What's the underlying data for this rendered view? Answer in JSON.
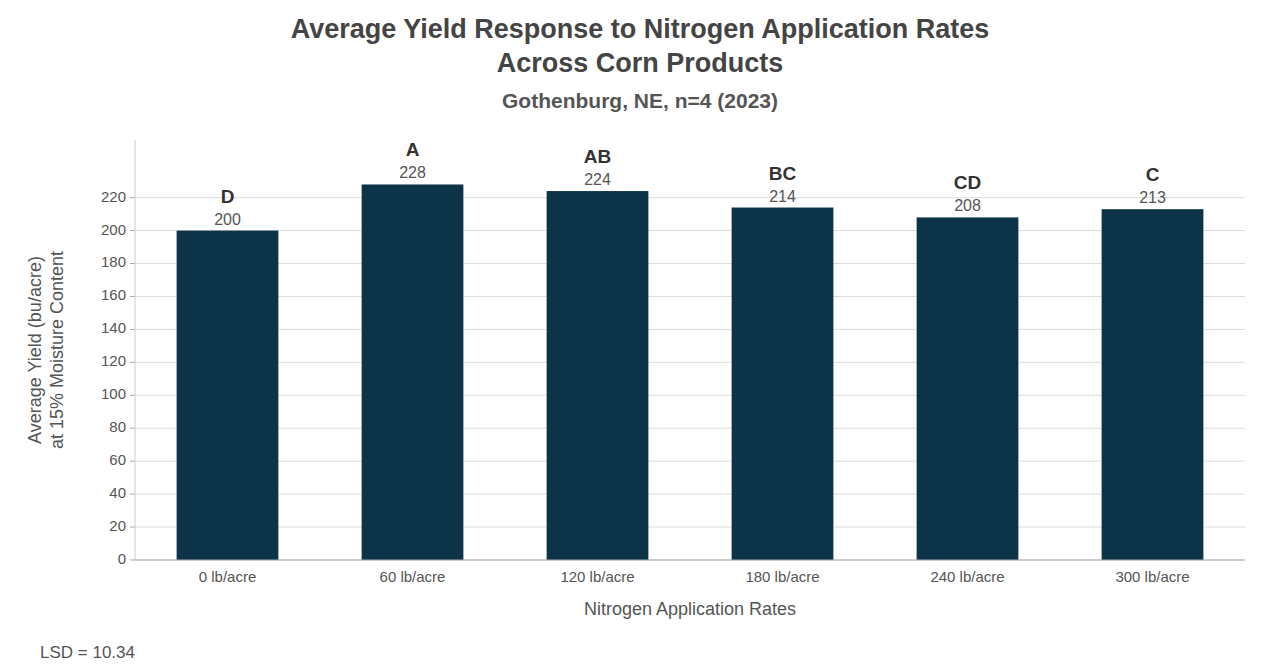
{
  "chart_data": {
    "type": "bar",
    "title": "Average Yield Response to Nitrogen Application Rates\nAcross Corn Products",
    "subtitle": "Gothenburg, NE, n=4 (2023)",
    "categories": [
      "0 lb/acre",
      "60 lb/acre",
      "120 lb/acre",
      "180 lb/acre",
      "240 lb/acre",
      "300 lb/acre"
    ],
    "values": [
      200,
      228,
      224,
      214,
      208,
      213
    ],
    "color": "#0d3349",
    "data_labels": true,
    "annotations": [
      {
        "text": "D",
        "category": "0 lb/acre"
      },
      {
        "text": "A",
        "category": "60 lb/acre"
      },
      {
        "text": "AB",
        "category": "120 lb/acre"
      },
      {
        "text": "BC",
        "category": "180 lb/acre"
      },
      {
        "text": "CD",
        "category": "240 lb/acre"
      },
      {
        "text": "C",
        "category": "300 lb/acre"
      },
      {
        "text": "LSD = 10.34"
      }
    ],
    "x_label": "Nitrogen Application Rates",
    "y_label": "Average Yield (bu/acre)\nat 15% Moisture Content",
    "ylim": [
      0,
      255
    ],
    "yticks": [
      0,
      20,
      40,
      60,
      80,
      100,
      120,
      140,
      160,
      180,
      200,
      220
    ],
    "grid": true
  }
}
